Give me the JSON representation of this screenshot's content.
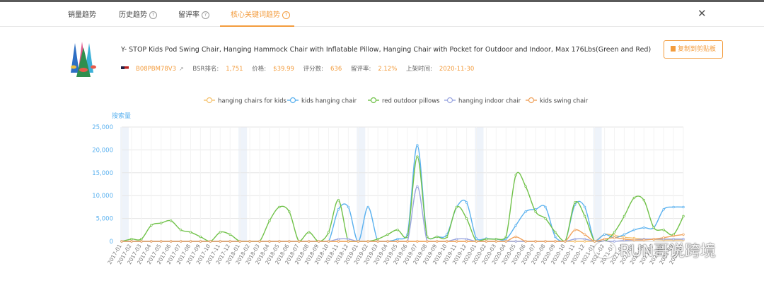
{
  "tabs": [
    {
      "label": "销量趋势",
      "help": false
    },
    {
      "label": "历史趋势",
      "help": true
    },
    {
      "label": "留评率",
      "help": true
    },
    {
      "label": "核心关键词趋势",
      "help": true,
      "active": true
    }
  ],
  "product": {
    "title": "Y- STOP Kids Pod Swing Chair, Hanging Hammock Chair with Inflatable Pillow, Hanging Chair with Pocket for Outdoor and Indoor, Max 176Lbs(Green and Red)",
    "asin": "B08PBM78V3",
    "bsr_label": "BSR排名:",
    "bsr_value": "1,751",
    "price_label": "价格:",
    "price_value": "$39.99",
    "score_label": "评分数:",
    "score_value": "636",
    "review_rate_label": "留评率:",
    "review_rate_value": "2.12%",
    "listed_label": "上架时间:",
    "listed_value": "2020-11-30"
  },
  "copy_button": "复制到剪贴板",
  "watermark": "RUN哥说跨境",
  "chart_data": {
    "type": "line",
    "ylabel": "搜索量",
    "ylim": [
      0,
      25000
    ],
    "yticks": [
      "0",
      "5,000",
      "10,000",
      "15,000",
      "20,000",
      "25,000"
    ],
    "x": [
      "2017-01",
      "2017-02",
      "2017-03",
      "2017-04",
      "2017-05",
      "2017-06",
      "2017-07",
      "2017-08",
      "2017-09",
      "2017-10",
      "2017-11",
      "2017-12",
      "2018-01",
      "2018-02",
      "2018-03",
      "2018-04",
      "2018-05",
      "2018-06",
      "2018-07",
      "2018-08",
      "2018-09",
      "2018-10",
      "2018-11",
      "2018-12",
      "2019-01",
      "2019-02",
      "2019-03",
      "2019-04",
      "2019-05",
      "2019-06",
      "2019-07",
      "2019-08",
      "2019-09",
      "2019-10",
      "2019-11",
      "2019-12",
      "2020-01",
      "2020-02",
      "2020-03",
      "2020-04",
      "2020-05",
      "2020-06",
      "2020-07",
      "2020-08",
      "2020-09",
      "2020-10",
      "2020-11",
      "2020-12",
      "2021-01",
      "2021-02",
      "2021-03",
      "2021-04",
      "2021-05",
      "2021-06",
      "2021-07",
      "2021-08",
      "2021-09",
      "2021-10"
    ],
    "series": [
      {
        "name": "hanging chairs for kids",
        "color": "#f5c16c",
        "values": [
          0,
          0,
          0,
          0,
          0,
          0,
          0,
          0,
          0,
          0,
          0,
          0,
          0,
          0,
          0,
          0,
          0,
          0,
          0,
          0,
          0,
          0,
          0,
          0,
          0,
          0,
          0,
          0,
          0,
          0,
          0,
          0,
          0,
          0,
          0,
          0,
          0,
          0,
          0,
          0,
          0,
          0,
          0,
          0,
          0,
          0,
          0,
          0,
          0,
          1500,
          1300,
          900,
          700,
          500,
          400,
          300,
          300,
          300
        ]
      },
      {
        "name": "kids hanging chair",
        "color": "#5ab1ef",
        "values": [
          0,
          0,
          0,
          0,
          0,
          0,
          0,
          0,
          0,
          0,
          0,
          0,
          0,
          0,
          0,
          0,
          0,
          0,
          0,
          0,
          0,
          0,
          7000,
          7500,
          0,
          7500,
          0,
          0,
          500,
          1500,
          21000,
          1000,
          1000,
          1500,
          7500,
          8500,
          600,
          600,
          500,
          500,
          3500,
          6500,
          7000,
          7500,
          1000,
          0,
          8000,
          7500,
          0,
          1500,
          800,
          1500,
          2500,
          3000,
          3000,
          7000,
          7500,
          7500
        ]
      },
      {
        "name": "red outdoor pillows",
        "color": "#71c24a",
        "values": [
          0,
          500,
          500,
          3500,
          4000,
          4500,
          2500,
          2000,
          1000,
          0,
          2000,
          1500,
          0,
          0,
          0,
          4500,
          7500,
          6500,
          0,
          2000,
          0,
          2000,
          9000,
          0,
          0,
          0,
          500,
          1500,
          2500,
          1000,
          18500,
          1000,
          1000,
          1000,
          7500,
          5000,
          0,
          500,
          500,
          1000,
          14500,
          12000,
          6500,
          5000,
          2000,
          0,
          8500,
          5500,
          0,
          0,
          2000,
          5500,
          9500,
          9000,
          3000,
          2500,
          1500,
          5500
        ]
      },
      {
        "name": "hanging indoor chair",
        "color": "#9aa6e0",
        "values": [
          0,
          0,
          0,
          0,
          0,
          0,
          0,
          0,
          0,
          0,
          0,
          0,
          0,
          0,
          0,
          0,
          0,
          0,
          0,
          0,
          0,
          0,
          500,
          500,
          0,
          0,
          0,
          0,
          0,
          0,
          12000,
          0,
          0,
          0,
          500,
          500,
          0,
          0,
          0,
          0,
          0,
          0,
          0,
          0,
          0,
          0,
          500,
          500,
          0,
          0,
          0,
          200,
          300,
          500,
          500,
          500,
          500,
          500
        ]
      },
      {
        "name": "kids swing chair",
        "color": "#f0a35e",
        "values": [
          0,
          0,
          0,
          0,
          0,
          0,
          0,
          0,
          0,
          0,
          0,
          0,
          0,
          0,
          0,
          0,
          0,
          0,
          0,
          0,
          0,
          0,
          0,
          0,
          0,
          0,
          0,
          0,
          0,
          0,
          0,
          0,
          0,
          0,
          0,
          0,
          0,
          0,
          0,
          0,
          1000,
          0,
          0,
          0,
          0,
          0,
          2500,
          1500,
          0,
          500,
          800,
          500,
          300,
          300,
          500,
          800,
          1200,
          1500
        ]
      }
    ]
  }
}
